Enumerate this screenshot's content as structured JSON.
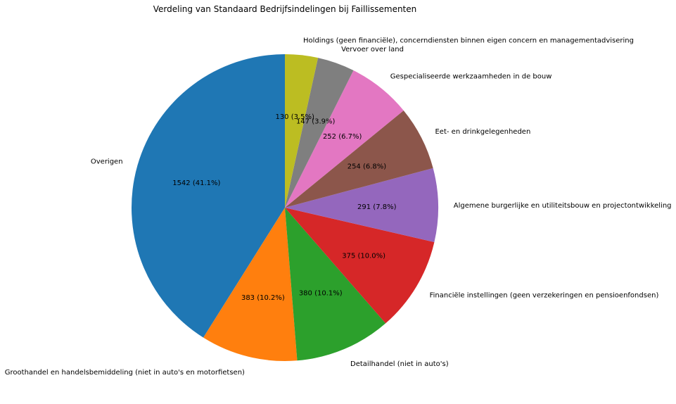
{
  "chart_data": {
    "type": "pie",
    "title": "Verdeling van Standaard Bedrijfsindelingen bij Faillissementen",
    "start_angle_deg": 90,
    "direction": "counterclockwise",
    "slices": [
      {
        "label": "Overigen",
        "value": 1542,
        "value_label": "1542 (41.1%)",
        "color": "#1f77b4"
      },
      {
        "label": "Groothandel en handelsbemiddeling (niet in auto's en motorfietsen)",
        "value": 383,
        "value_label": "383 (10.2%)",
        "color": "#ff7f0e"
      },
      {
        "label": "Detailhandel (niet in auto's)",
        "value": 380,
        "value_label": "380 (10.1%)",
        "color": "#2ca02c"
      },
      {
        "label": "Financiële instellingen (geen verzekeringen en pensioenfondsen)",
        "value": 375,
        "value_label": "375 (10.0%)",
        "color": "#d62728"
      },
      {
        "label": "Algemene burgerlijke en utiliteitsbouw en projectontwikkeling",
        "value": 291,
        "value_label": "291 (7.8%)",
        "color": "#9467bd"
      },
      {
        "label": "Eet- en drinkgelegenheden",
        "value": 254,
        "value_label": "254 (6.8%)",
        "color": "#8c564b"
      },
      {
        "label": "Gespecialiseerde werkzaamheden in de bouw",
        "value": 252,
        "value_label": "252 (6.7%)",
        "color": "#e377c2"
      },
      {
        "label": "Vervoer over land",
        "value": 147,
        "value_label": "147 (3.9%)",
        "color": "#7f7f7f"
      },
      {
        "label": "Holdings (geen financiële), concerndiensten binnen eigen concern en managementadvisering",
        "value": 130,
        "value_label": "130 (3.5%)",
        "color": "#bcbd22"
      }
    ]
  }
}
